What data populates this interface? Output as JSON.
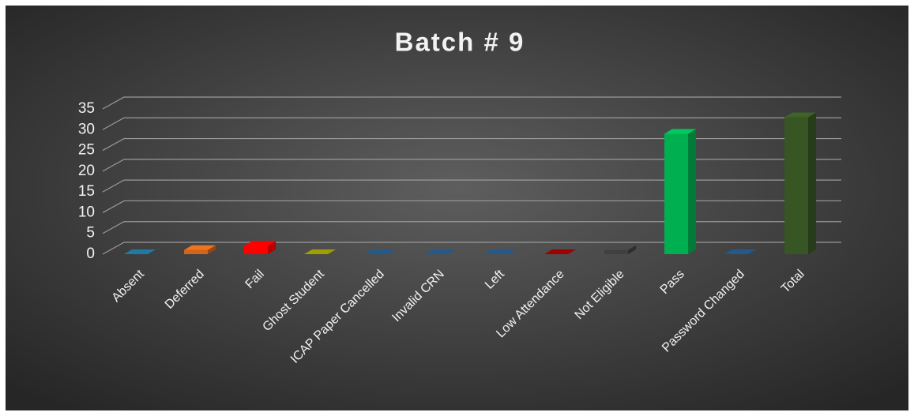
{
  "chart_data": {
    "type": "bar3d",
    "title": "Batch # 9",
    "categories": [
      "Absent",
      "Deferred",
      "Fail",
      "Ghost Student",
      "ICAP Paper Cancelled",
      "Invalid CRN",
      "Left",
      "Low Attendance",
      "Not Eligible",
      "Pass",
      "Password Changed",
      "Total"
    ],
    "values": [
      0,
      1,
      2,
      0,
      0,
      0,
      0,
      0,
      1,
      29,
      0,
      33
    ],
    "colors": [
      "#1b6a8f",
      "#d0661c",
      "#ff0000",
      "#8a8a00",
      "#1f4e79",
      "#1f4e79",
      "#1f4e79",
      "#8b0000",
      "#404040",
      "#00b050",
      "#1f4e79",
      "#375623"
    ],
    "ylim": [
      0,
      35
    ],
    "yticks": [
      0,
      5,
      10,
      15,
      20,
      25,
      30,
      35
    ],
    "grid": true
  }
}
